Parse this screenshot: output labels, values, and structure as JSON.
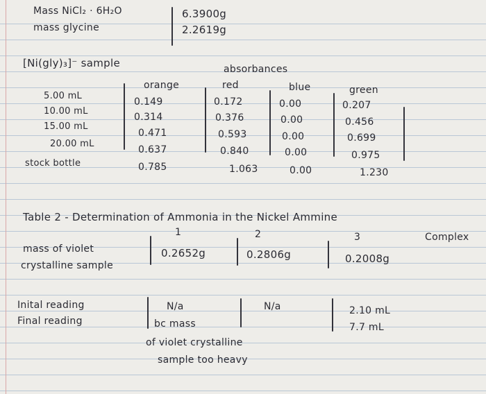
{
  "header": {
    "row1_label": "Mass NiCl₂ · 6H₂O",
    "row1_value": "6.3900g",
    "row2_label": "mass glycine",
    "row2_value": "2.2619g"
  },
  "table1": {
    "sample_label": "[Ni(gly)₃]⁻ sample",
    "absorbances_label": "absorbances",
    "columns": [
      "orange",
      "red",
      "blue",
      "green"
    ],
    "rows": [
      {
        "label": "5.00 mL",
        "values": [
          "0.149",
          "0.172",
          "0.00",
          "0.207"
        ]
      },
      {
        "label": "10.00 mL",
        "values": [
          "0.314",
          "0.376",
          "0.00",
          "0.456"
        ]
      },
      {
        "label": "15.00 mL",
        "values": [
          "0.471",
          "0.593",
          "0.00",
          "0.699"
        ]
      },
      {
        "label": "20.00 mL",
        "values": [
          "0.637",
          "0.840",
          "0.00",
          "0.975"
        ]
      },
      {
        "label": "stock bottle",
        "values": [
          "0.785",
          "1.063",
          "0.00",
          "1.230"
        ]
      }
    ]
  },
  "table2": {
    "title": "Table 2 - Determination of Ammonia in the Nickel Ammine",
    "title_cont": "Complex",
    "trial_numbers": [
      "1",
      "2",
      "3"
    ],
    "mass_label_line1": "mass of violet",
    "mass_label_line2": "crystalline sample",
    "mass_values": [
      "0.2652g",
      "0.2806g",
      "0.2008g"
    ],
    "reading_label_initial": "Inital reading",
    "reading_label_final": "Final reading",
    "trial1_initial": "N/a",
    "trial1_note_line1": "bc mass",
    "trial1_note_line2": "of violet crystalline",
    "trial1_note_line3": "sample too heavy",
    "trial2_initial": "N/a",
    "trial3_initial": "2.10 mL",
    "trial3_final": "7.7 mL"
  }
}
